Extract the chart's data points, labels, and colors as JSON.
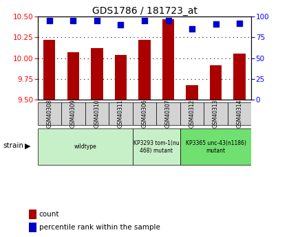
{
  "title": "GDS1786 / 181723_at",
  "samples": [
    "GSM40308",
    "GSM40309",
    "GSM40310",
    "GSM40311",
    "GSM40306",
    "GSM40307",
    "GSM40312",
    "GSM40313",
    "GSM40314"
  ],
  "counts": [
    10.22,
    10.07,
    10.12,
    10.04,
    10.22,
    10.47,
    9.67,
    9.91,
    10.05
  ],
  "percentiles": [
    95,
    95,
    95,
    90,
    95,
    95,
    85,
    91,
    92
  ],
  "ylim_left": [
    9.5,
    10.5
  ],
  "ylim_right": [
    0,
    100
  ],
  "yticks_left": [
    9.5,
    9.75,
    10.0,
    10.25,
    10.5
  ],
  "yticks_right": [
    0,
    25,
    50,
    75,
    100
  ],
  "strain_groups": [
    {
      "label": "wildtype",
      "start": 0,
      "end": 4,
      "color": "#c8f0c8"
    },
    {
      "label": "KP3293 tom-1(nu\n468) mutant",
      "start": 4,
      "end": 6,
      "color": "#c8f0c8"
    },
    {
      "label": "KP3365 unc-43(n1186)\nmutant",
      "start": 6,
      "end": 9,
      "color": "#70e070"
    }
  ],
  "bar_color": "#aa0000",
  "dot_color": "#0000cc",
  "bar_width": 0.5,
  "dot_size": 30,
  "grid_linestyle": "dotted",
  "grid_color": "#000000",
  "legend_count_label": "count",
  "legend_pct_label": "percentile rank within the sample",
  "bg_color": "#ffffff"
}
